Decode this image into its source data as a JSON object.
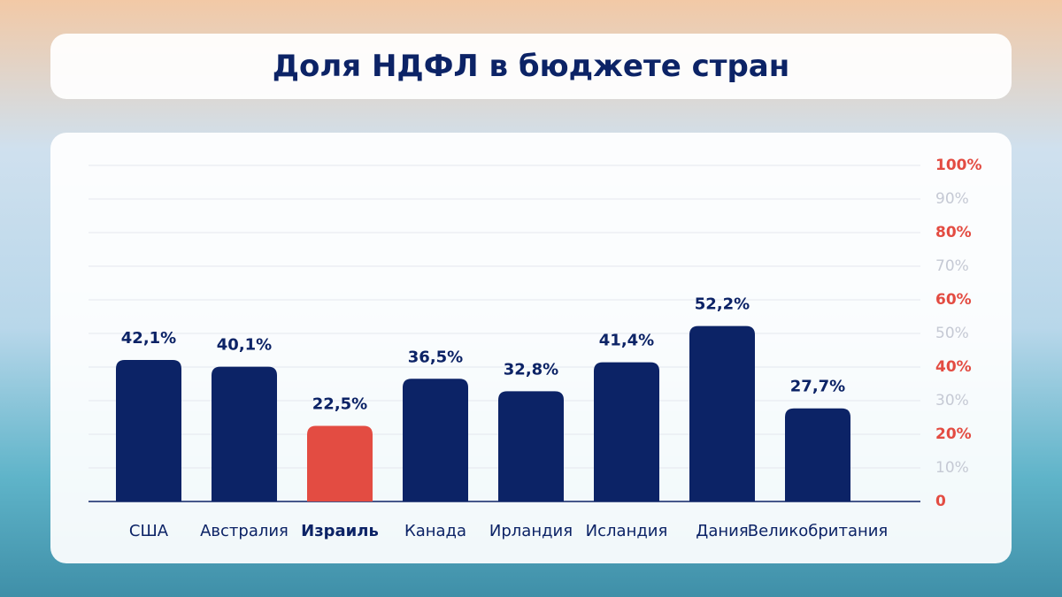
{
  "chart_data": {
    "type": "bar",
    "title": "Доля НДФЛ в бюджете стран",
    "categories": [
      "США",
      "Австралия",
      "Израиль",
      "Канада",
      "Ирландия",
      "Исландия",
      "Дания",
      "Великобритания"
    ],
    "values": [
      42.1,
      40.1,
      22.5,
      36.5,
      32.8,
      41.4,
      52.2,
      27.7
    ],
    "value_labels": [
      "42,1%",
      "40,1%",
      "22,5%",
      "36,5%",
      "32,8%",
      "41,4%",
      "52,2%",
      "27,7%"
    ],
    "color": "#0c2366",
    "highlight": 2,
    "highlight_color": "#e34c42",
    "ylim": [
      0,
      100
    ],
    "yticks": [
      0,
      {
        "value": 10,
        "label": "10%"
      },
      {
        "value": 20,
        "label": "20%"
      },
      {
        "value": 30,
        "label": "30%"
      },
      {
        "value": 40,
        "label": "40%"
      },
      {
        "value": 50,
        "label": "50%"
      },
      {
        "value": 60,
        "label": "60%"
      },
      {
        "value": 70,
        "label": "70%"
      },
      {
        "value": 80,
        "label": "80%"
      },
      {
        "value": 90,
        "label": "90%"
      },
      {
        "value": 100,
        "label": "100%"
      }
    ],
    "ytick_colors": [
      "#e34c42",
      "#c5c9d4",
      "#e34c42",
      "#c5c9d4",
      "#e34c42",
      "#c5c9d4",
      "#e34c42",
      "#c5c9d4",
      "#e34c42",
      "#c5c9d4",
      "#e34c42"
    ],
    "y_axis_side": "right",
    "grid": true
  }
}
